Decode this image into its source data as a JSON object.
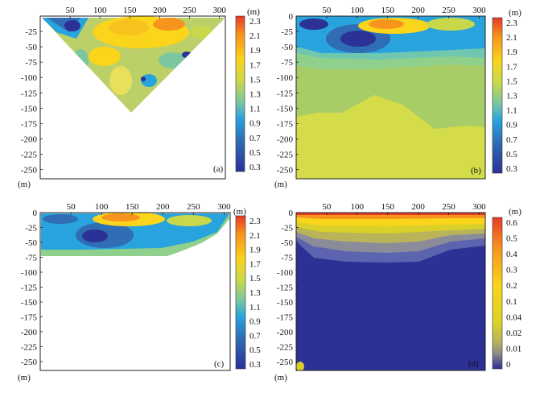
{
  "chart_data": [
    {
      "type": "heatmap",
      "panel_label": "(a)",
      "x_ticks": [
        "50",
        "100",
        "150",
        "200",
        "250",
        "300"
      ],
      "y_ticks": [
        "-25",
        "-50",
        "-75",
        "-100",
        "-125",
        "-150",
        "-175",
        "-200",
        "-225",
        "-250"
      ],
      "x_unit": "(m)",
      "y_unit": "(m)",
      "xlim": [
        0,
        310
      ],
      "ylim": [
        -265,
        0
      ],
      "colorbar_unit": "(m)",
      "colorbar_labels": [
        "2.3",
        "2.1",
        "1.9",
        "1.7",
        "1.5",
        "1.3",
        "1.1",
        "0.9",
        "0.7",
        "0.5",
        "0.3"
      ],
      "colors": {
        "low": "#2b3195",
        "mid": "#29a3de",
        "high": "#fbd41c",
        "max": "#e8392a"
      }
    },
    {
      "type": "heatmap",
      "panel_label": "(b)",
      "x_ticks": [
        "50",
        "100",
        "150",
        "200",
        "250",
        "300"
      ],
      "y_ticks": [
        "0",
        "-25",
        "-50",
        "-75",
        "-100",
        "-125",
        "-150",
        "-175",
        "-200",
        "-225",
        "-250"
      ],
      "x_unit": "(m)",
      "y_unit": "(m)",
      "xlim": [
        0,
        310
      ],
      "ylim": [
        -265,
        0
      ],
      "colorbar_unit": "(m)",
      "colorbar_labels": [
        "2.3",
        "2.1",
        "1.9",
        "1.7",
        "1.5",
        "1.3",
        "1.1",
        "0.9",
        "0.7",
        "0.5",
        "0.3"
      ]
    },
    {
      "type": "heatmap",
      "panel_label": "(c)",
      "x_ticks": [
        "50",
        "100",
        "150",
        "200",
        "250",
        "300"
      ],
      "y_ticks": [
        "0",
        "-25",
        "-50",
        "-75",
        "-100",
        "-125",
        "-150",
        "-175",
        "-200",
        "-225",
        "-250"
      ],
      "x_unit": "(m)",
      "y_unit": "(m)",
      "xlim": [
        0,
        310
      ],
      "ylim": [
        -265,
        0
      ],
      "colorbar_unit": "(m)",
      "colorbar_labels": [
        "2.3",
        "2.1",
        "1.9",
        "1.7",
        "1.5",
        "1.3",
        "1.1",
        "0.9",
        "0.7",
        "0.5",
        "0.3"
      ]
    },
    {
      "type": "heatmap",
      "panel_label": "(d)",
      "x_ticks": [
        "50",
        "100",
        "150",
        "200",
        "250",
        "300"
      ],
      "y_ticks": [
        "0",
        "-25",
        "-50",
        "-75",
        "-100",
        "-125",
        "-150",
        "-175",
        "-200",
        "-225",
        "-250"
      ],
      "x_unit": "(m)",
      "y_unit": "(m)",
      "xlim": [
        0,
        310
      ],
      "ylim": [
        -265,
        0
      ],
      "colorbar_unit": "(m)",
      "colorbar_labels": [
        "0.6",
        "0.5",
        "0.4",
        "0.3",
        "0.2",
        "0.1",
        "0.04",
        "0.02",
        "0.01",
        "0"
      ]
    }
  ]
}
